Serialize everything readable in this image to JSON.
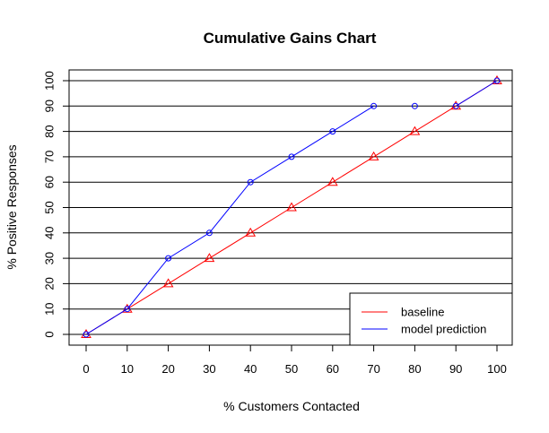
{
  "chart_data": {
    "type": "line",
    "title": "Cumulative Gains Chart",
    "xlabel": "% Customers Contacted",
    "ylabel": "% Positive Responses",
    "x_ticks": [
      "0",
      "10",
      "20",
      "30",
      "40",
      "50",
      "60",
      "70",
      "80",
      "90",
      "100"
    ],
    "y_ticks": [
      "0",
      "10",
      "20",
      "30",
      "40",
      "50",
      "60",
      "70",
      "80",
      "90",
      "100"
    ],
    "xlim": [
      0,
      100
    ],
    "ylim": [
      0,
      100
    ],
    "grid": "horizontal",
    "legend_position": "bottom-right",
    "series": [
      {
        "name": "baseline",
        "color": "#ff0000",
        "marker": "triangle",
        "points": [
          [
            0,
            0
          ],
          [
            10,
            10
          ],
          [
            20,
            20
          ],
          [
            30,
            30
          ],
          [
            40,
            40
          ],
          [
            50,
            50
          ],
          [
            60,
            60
          ],
          [
            70,
            70
          ],
          [
            80,
            80
          ],
          [
            90,
            90
          ],
          [
            100,
            100
          ]
        ],
        "line_segments": [
          [
            0,
            10
          ]
        ]
      },
      {
        "name": "model prediction",
        "color": "#0000ff",
        "marker": "circle",
        "points": [
          [
            0,
            0
          ],
          [
            10,
            10
          ],
          [
            20,
            30
          ],
          [
            30,
            40
          ],
          [
            40,
            60
          ],
          [
            50,
            70
          ],
          [
            60,
            80
          ],
          [
            70,
            90
          ],
          [
            80,
            90
          ],
          [
            90,
            90
          ],
          [
            100,
            100
          ]
        ],
        "line_segments": [
          [
            0,
            7
          ],
          [
            9,
            10
          ]
        ]
      }
    ]
  }
}
